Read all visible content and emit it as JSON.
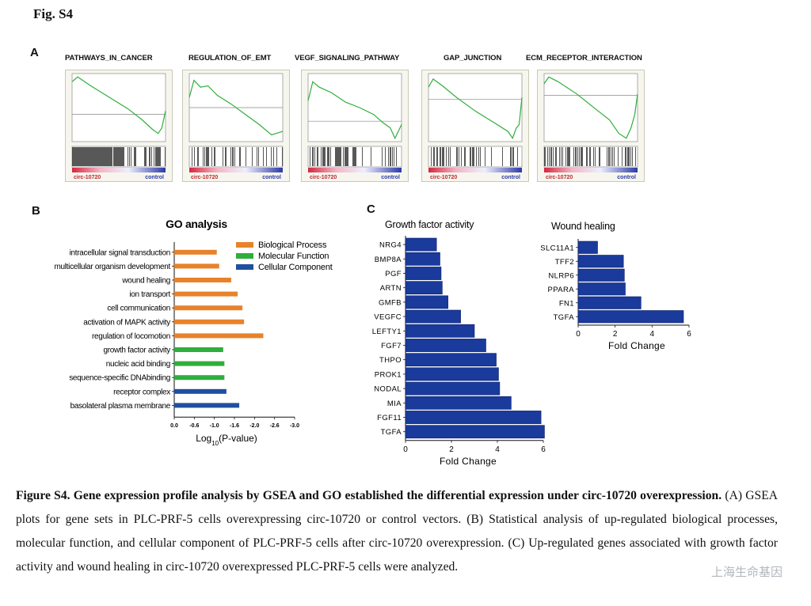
{
  "figure_label": "Fig. S4",
  "panels": {
    "a": {
      "letter": "A"
    },
    "b": {
      "letter": "B"
    },
    "c": {
      "letter": "C"
    }
  },
  "gsea": {
    "left_label": "circ-10720",
    "right_label": "control",
    "plots": [
      {
        "title": "PATHWAYS_IN_CANCER"
      },
      {
        "title": "REGULATION_OF_EMT"
      },
      {
        "title": "VEGF_SIGNALING_PATHWAY"
      },
      {
        "title": "GAP_JUNCTION"
      },
      {
        "title": "ECM_RECEPTOR_INTERACTION"
      }
    ]
  },
  "chart_data": [
    {
      "id": "go",
      "type": "bar",
      "orientation": "horizontal",
      "title": "GO analysis",
      "xlabel_prefix": "Log",
      "xlabel_sub": "10",
      "xlabel_suffix": "(P-value)",
      "xlim": [
        0,
        -3.0
      ],
      "xticks": [
        "0.0",
        "-0.6",
        "-1.0",
        "-1.6",
        "-2.0",
        "-2.6",
        "-3.0"
      ],
      "categories": [
        "intracellular signal transduction",
        "multicellular organism development",
        "wound healing",
        "ion transport",
        "cell communication",
        "activation of MAPK activity",
        "regulation of locomotion",
        "growth factor activity",
        "nucleic acid binding",
        "sequence-specific DNAbinding",
        "receptor complex",
        "basolateral plasma membrane"
      ],
      "values": [
        -1.06,
        -1.12,
        -1.42,
        -1.58,
        -1.7,
        -1.74,
        -2.22,
        -1.22,
        -1.25,
        -1.25,
        -1.3,
        -1.62
      ],
      "groups": [
        0,
        0,
        0,
        0,
        0,
        0,
        0,
        1,
        1,
        1,
        2,
        2
      ],
      "legend": [
        {
          "name": "Biological Process",
          "color": "#e8822a"
        },
        {
          "name": "Molecular Function",
          "color": "#2fae3c"
        },
        {
          "name": "Cellular Component",
          "color": "#1f4fa0"
        }
      ],
      "legend_position": "top-right"
    },
    {
      "id": "growth",
      "type": "bar",
      "orientation": "horizontal",
      "title": "Growth factor activity",
      "xlabel": "Fold Change",
      "xlim": [
        0,
        6
      ],
      "xticks": [
        "0",
        "2",
        "4",
        "6"
      ],
      "categories": [
        "NRG4",
        "BMP8A",
        "PGF",
        "ARTN",
        "GMFB",
        "VEGFC",
        "LEFTY1",
        "FGF7",
        "THPO",
        "PROK1",
        "NODAL",
        "MIA",
        "FGF11",
        "TGFA"
      ],
      "values": [
        1.35,
        1.5,
        1.55,
        1.6,
        1.85,
        2.4,
        3.0,
        3.5,
        3.95,
        4.05,
        4.1,
        4.6,
        5.9,
        6.05
      ],
      "color": "#1a3a9c"
    },
    {
      "id": "wound",
      "type": "bar",
      "orientation": "horizontal",
      "title": "Wound healing",
      "xlabel": "Fold Change",
      "xlim": [
        0,
        6
      ],
      "xticks": [
        "0",
        "2",
        "4",
        "6"
      ],
      "categories": [
        "SLC11A1",
        "TFF2",
        "NLRP6",
        "PPARA",
        "FN1",
        "TGFA"
      ],
      "values": [
        1.05,
        2.45,
        2.5,
        2.55,
        3.4,
        5.7
      ],
      "color": "#1a3a9c"
    }
  ],
  "caption": {
    "bold_part": "Figure S4. Gene expression profile analysis by GSEA and GO established the differential expression under circ-10720 overexpression.",
    "text_part": " (A) GSEA plots for gene sets in PLC-PRF-5 cells overexpressing circ-10720 or control vectors. (B) Statistical analysis of up-regulated biological processes, molecular function, and cellular component of PLC-PRF-5 cells after circ-10720 overexpression. (C) Up-regulated genes associated with growth factor activity and wound healing in circ-10720 overexpressed PLC-PRF-5 cells were analyzed."
  },
  "watermark": "上海生命基因"
}
